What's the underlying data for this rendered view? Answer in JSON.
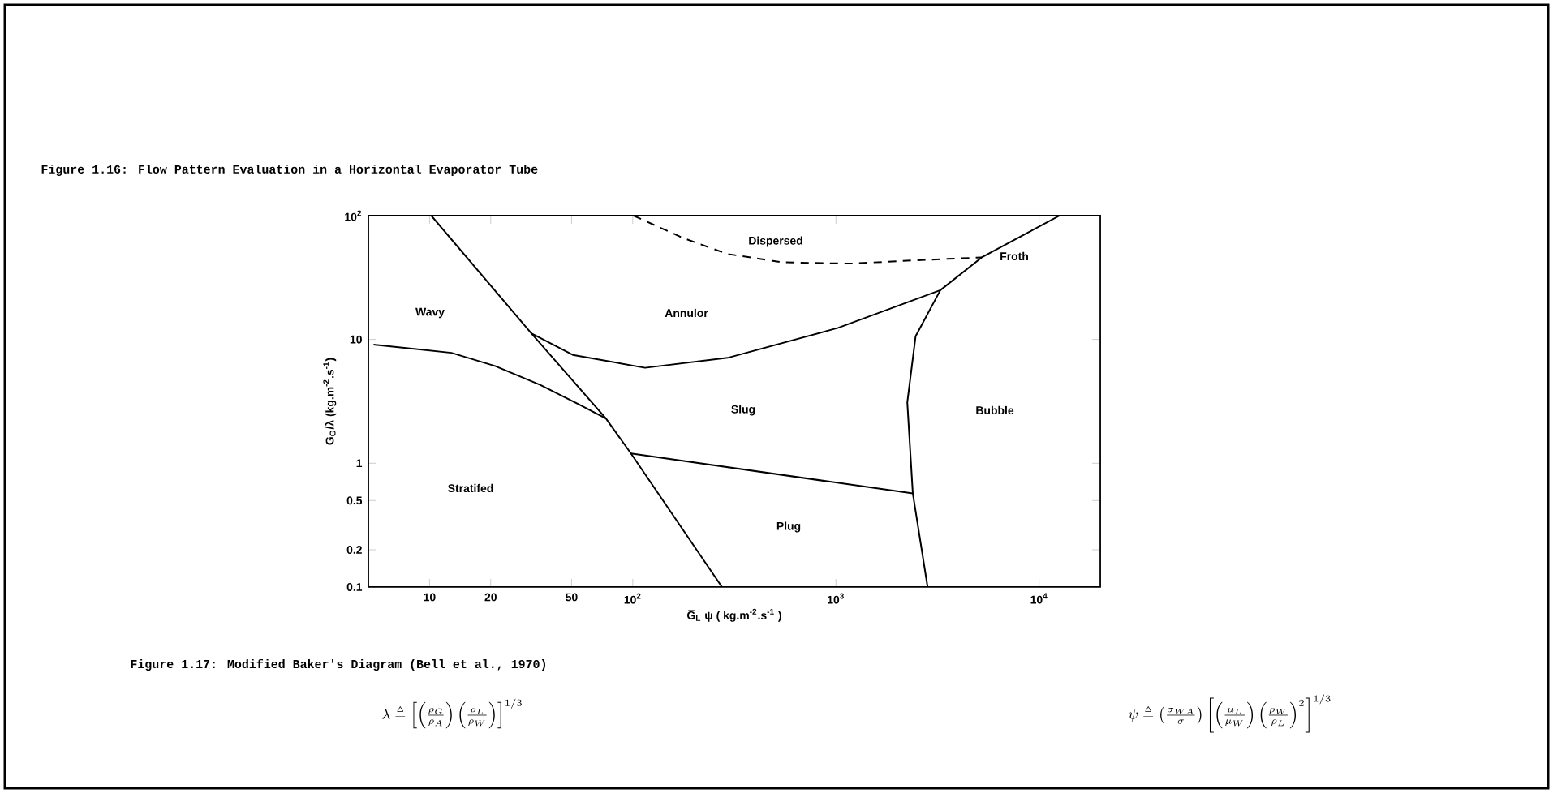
{
  "chart_data": {
    "type": "line",
    "title": "Figure 1.16: Flow Pattern Evaluation in a Horizontal Evaporator Tube",
    "xlabel": "G̅$_{L}$ ψ ( kg.m$^{-2}$.s$^{-1}$ )",
    "ylabel": "G̅$_{G}$/λ (kg.m$^{-2}$.s$^{-1}$)",
    "log": "xy",
    "xlim": [
      5,
      20000
    ],
    "ylim": [
      0.1,
      100
    ],
    "xticks": [
      10,
      20,
      50,
      {
        "value": 100,
        "label": "10$^{2}$"
      },
      {
        "value": 1000,
        "label": "10$^{3}$"
      },
      {
        "value": 10000,
        "label": "10$^{4}$"
      }
    ],
    "yticks": [
      0.1,
      0.2,
      0.5,
      1,
      10,
      {
        "value": 100,
        "label": "10$^{2}$"
      }
    ],
    "series": [
      {
        "color": "#000000",
        "line_style": "solid",
        "x": [
          10.2,
          31.7,
          73.8,
          98,
          275
        ],
        "values": [
          100,
          11.2,
          2.3,
          1.2,
          0.1
        ]
      },
      {
        "color": "#000000",
        "line_style": "solid",
        "x": [
          5.3,
          12.8,
          21,
          35,
          54,
          73.8
        ],
        "values": [
          9.1,
          7.8,
          6.1,
          4.3,
          3.0,
          2.3
        ]
      },
      {
        "color": "#000000",
        "line_style": "solid",
        "x": [
          31.7,
          50.7,
          115,
          293,
          1024,
          3266
        ],
        "values": [
          11.2,
          7.5,
          5.9,
          7.1,
          12.4,
          25
        ]
      },
      {
        "color": "#000000",
        "line_style": "solid",
        "x": [
          98,
          2390
        ],
        "values": [
          1.2,
          0.57
        ]
      },
      {
        "color": "#000000",
        "line_style": "solid",
        "x": [
          12600,
          5220,
          3266,
          2466,
          2245,
          2390,
          2826
        ],
        "values": [
          100,
          46,
          25,
          10.6,
          3.1,
          0.57,
          0.1
        ]
      },
      {
        "color": "#000000",
        "line_style": "dashed",
        "x": [
          101,
          177,
          293,
          548,
          1162,
          2800,
          5220
        ],
        "values": [
          100,
          66,
          49,
          42,
          41,
          44,
          46
        ]
      }
    ],
    "annotations": [
      "Dispersed",
      "Froth",
      "Wavy",
      "Annulor",
      "Slug",
      "Bubble",
      "Stratifed",
      "Plug",
      "Figure 1.17: Modified Baker's Diagram (Bell et al., 1970)",
      "\\lambda \\triangleq \\left[\\left(\\frac{\\rho_G}{\\rho_A}\\right)\\left(\\frac{\\rho_L}{\\rho_W}\\right)\\right]^{1/3}",
      "\\psi \\triangleq \\left(\\frac{\\sigma_{WA}}{\\sigma}\\right)\\left[\\left(\\frac{\\mu_L}{\\mu_W}\\right)\\left(\\frac{\\rho_W}{\\rho_L}\\right)^{2}\\right]^{1/3}"
    ]
  }
}
